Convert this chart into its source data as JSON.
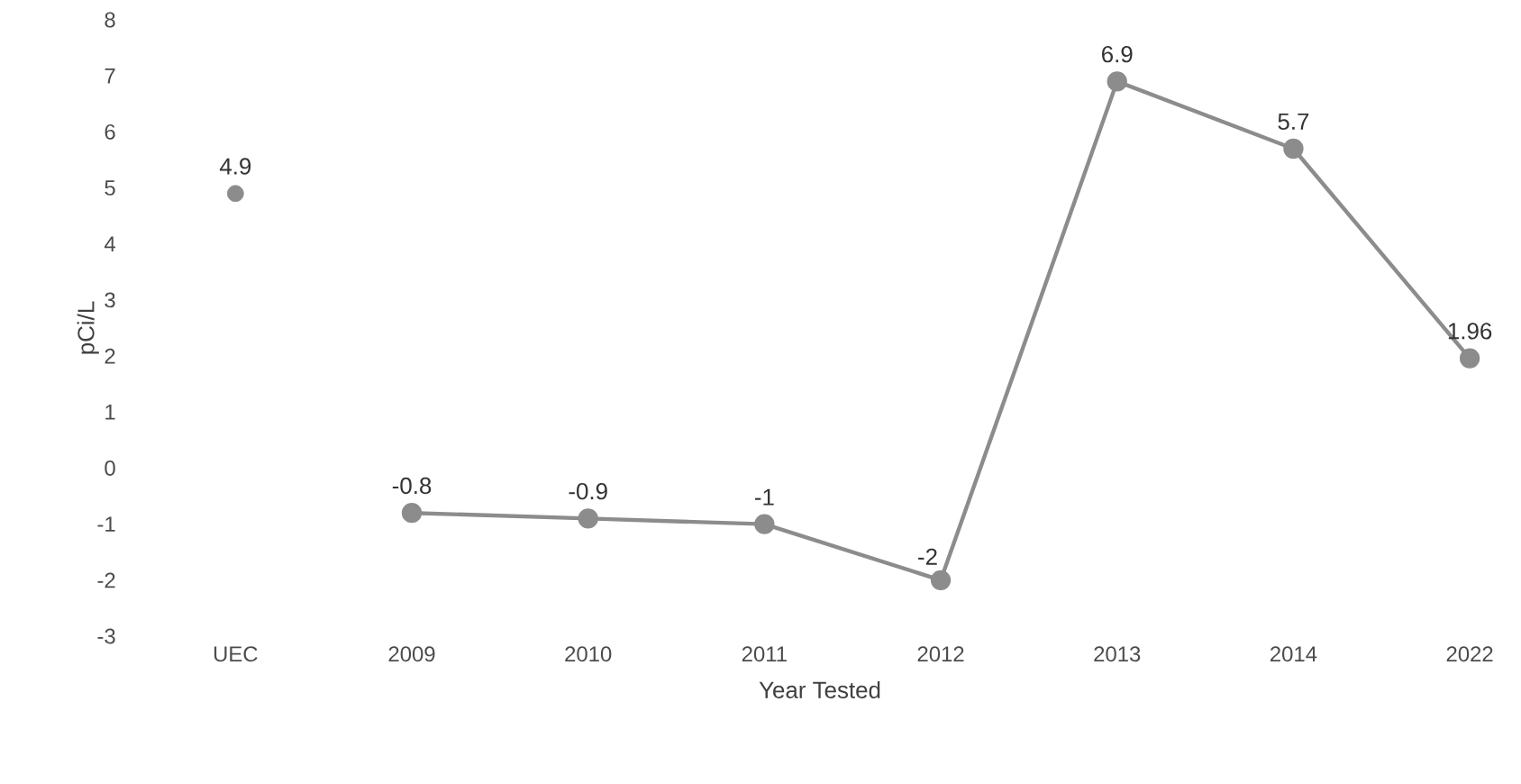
{
  "chart_data": {
    "type": "line",
    "xlabel": "Year Tested",
    "ylabel": "pCi/L",
    "categories": [
      "UEC",
      "2009",
      "2010",
      "2011",
      "2012",
      "2013",
      "2014",
      "2022"
    ],
    "series": [
      {
        "type": "scatter",
        "color": "#8c8c8c",
        "values": [
          4.9,
          null,
          null,
          null,
          null,
          null,
          null,
          null
        ]
      },
      {
        "color": "#8c8c8c",
        "values": [
          null,
          -0.8,
          -0.9,
          -1,
          -2,
          6.9,
          5.7,
          1.96
        ]
      }
    ],
    "ylim": [
      -3,
      8
    ],
    "yticks": [
      -3,
      -2,
      -1,
      0,
      1,
      2,
      3,
      4,
      5,
      6,
      7,
      8
    ],
    "marker": "circle",
    "line_style": "solid",
    "data_labels": true
  }
}
